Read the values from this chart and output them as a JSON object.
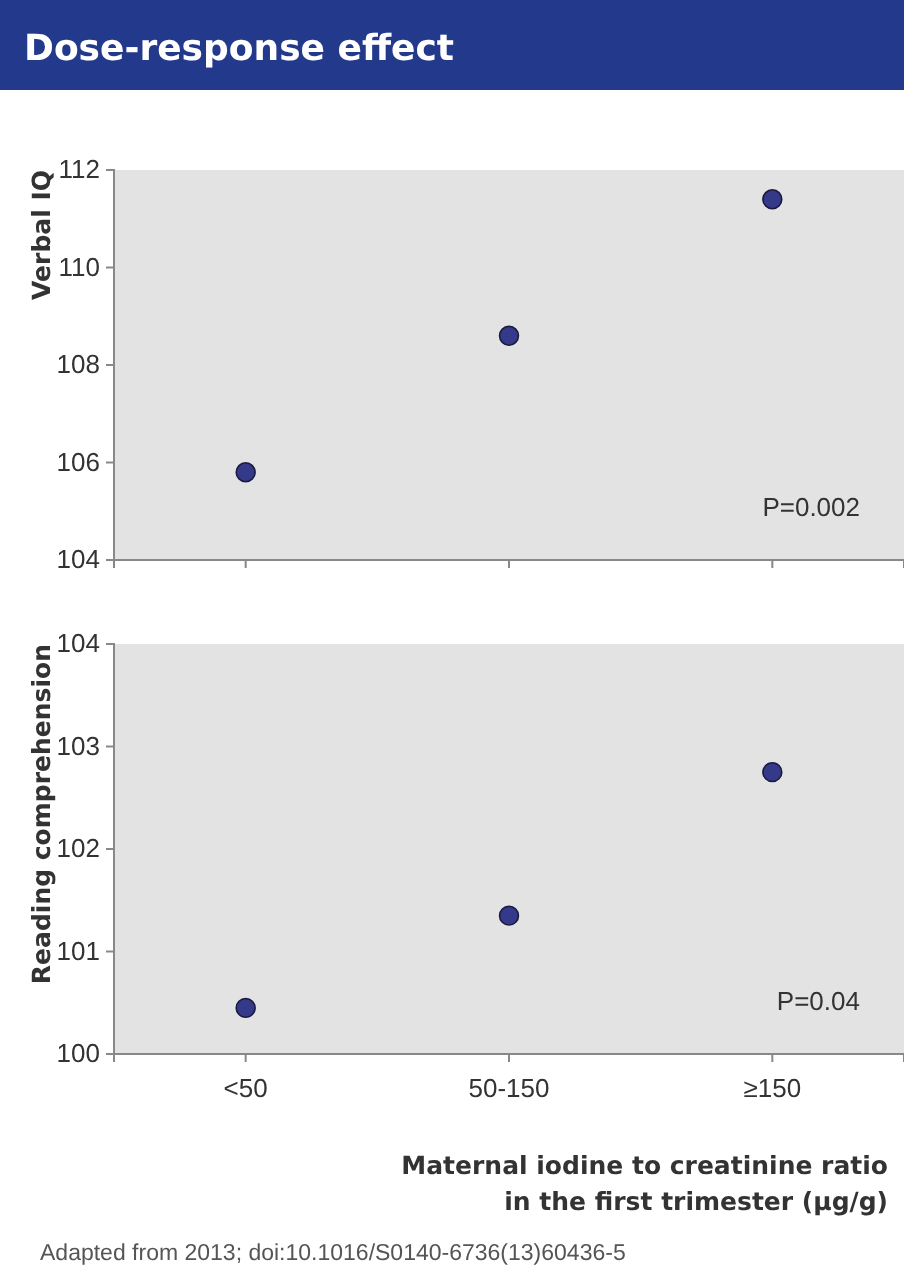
{
  "chart_data": [
    {
      "type": "scatter",
      "title": "Dose-response effect",
      "ylabel": "Verbal IQ",
      "categories": [
        null,
        null,
        null
      ],
      "series": [
        {
          "color": "#35398a",
          "values": [
            105.8,
            108.6,
            111.4
          ]
        }
      ],
      "ylim": [
        104,
        112
      ],
      "yticks": [
        104,
        106,
        108,
        110,
        112
      ],
      "marker": "circle",
      "tick_labels": "y",
      "annotations": [
        "P=0.002"
      ]
    },
    {
      "type": "scatter",
      "ylabel": "Reading comprehension",
      "xlabel": "Maternal iodine to creatinine ratio\nin the first trimester (µg/g)",
      "categories": [
        "<50",
        "50-150",
        "≥150"
      ],
      "series": [
        {
          "color": "#35398a",
          "values": [
            100.45,
            101.35,
            102.75
          ]
        }
      ],
      "ylim": [
        100,
        104
      ],
      "yticks": [
        100,
        101,
        102,
        103,
        104
      ],
      "marker": "circle",
      "annotations": [
        "P=0.04",
        "Adapted from 2013; doi:10.1016/S0140-6736(13)60436-5"
      ]
    }
  ]
}
